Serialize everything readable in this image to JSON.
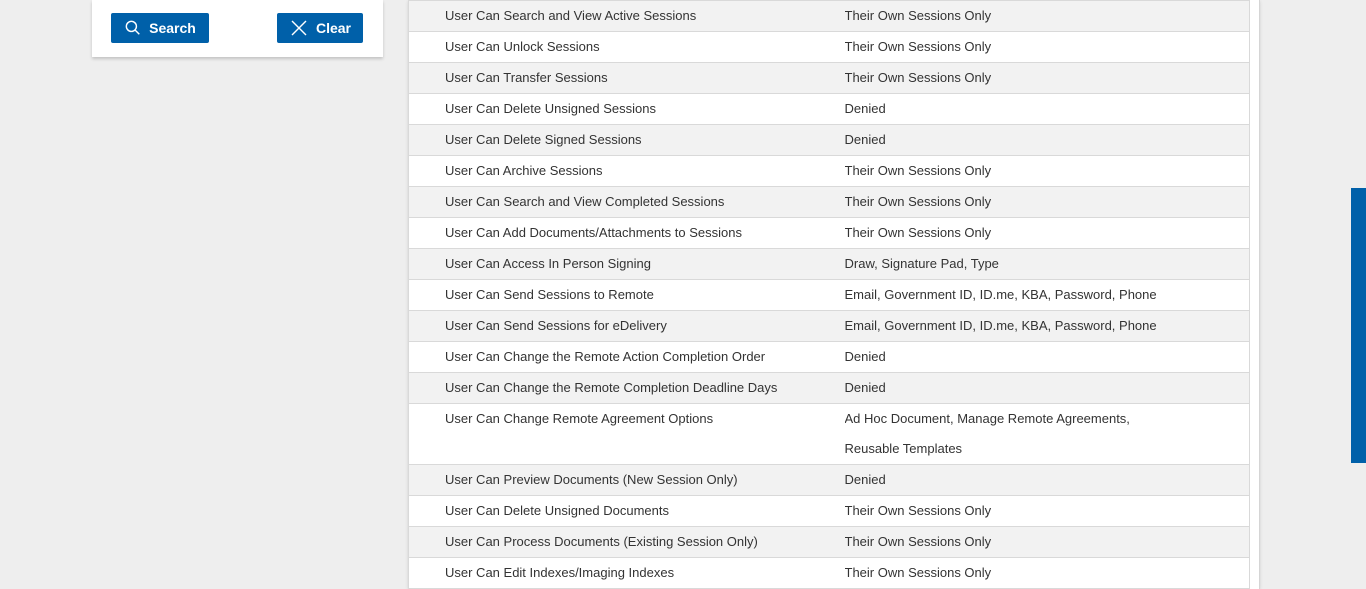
{
  "theme": {
    "accent_blue": "#0060a9",
    "page_background": "#eeeeee",
    "row_alt_background": "#f2f2f2",
    "row_border": "#d9d9d9",
    "text_color": "#333333"
  },
  "search_panel": {
    "search_button": {
      "label": "Search",
      "icon": "search-icon"
    },
    "clear_button": {
      "label": "Clear",
      "icon": "clear-x-icon"
    }
  },
  "permissions_table": {
    "columns": [
      "permission",
      "value"
    ],
    "rows": [
      {
        "label": "User Can Search and View Active Sessions",
        "value": "Their Own Sessions Only"
      },
      {
        "label": "User Can Unlock Sessions",
        "value": "Their Own Sessions Only"
      },
      {
        "label": "User Can Transfer Sessions",
        "value": "Their Own Sessions Only"
      },
      {
        "label": "User Can Delete Unsigned Sessions",
        "value": "Denied"
      },
      {
        "label": "User Can Delete Signed Sessions",
        "value": "Denied"
      },
      {
        "label": "User Can Archive Sessions",
        "value": "Their Own Sessions Only"
      },
      {
        "label": "User Can Search and View Completed Sessions",
        "value": "Their Own Sessions Only"
      },
      {
        "label": "User Can Add Documents/Attachments to Sessions",
        "value": "Their Own Sessions Only"
      },
      {
        "label": "User Can Access In Person Signing",
        "value": "Draw, Signature Pad, Type"
      },
      {
        "label": "User Can Send Sessions to Remote",
        "value": "Email, Government ID, ID.me, KBA, Password, Phone"
      },
      {
        "label": "User Can Send Sessions for eDelivery",
        "value": "Email, Government ID, ID.me, KBA, Password, Phone"
      },
      {
        "label": "User Can Change the Remote Action Completion Order",
        "value": "Denied"
      },
      {
        "label": "User Can Change the Remote Completion Deadline Days",
        "value": "Denied"
      },
      {
        "label": "User Can Change Remote Agreement Options",
        "value": "Ad Hoc Document, Manage Remote Agreements, Reusable Templates"
      },
      {
        "label": "User Can Preview Documents (New Session Only)",
        "value": "Denied"
      },
      {
        "label": "User Can Delete Unsigned Documents",
        "value": "Their Own Sessions Only"
      },
      {
        "label": "User Can Process Documents (Existing Session Only)",
        "value": "Their Own Sessions Only"
      },
      {
        "label": "User Can Edit Indexes/Imaging Indexes",
        "value": "Their Own Sessions Only"
      }
    ]
  },
  "scrollbar": {
    "thumb_color": "#0060a9"
  }
}
